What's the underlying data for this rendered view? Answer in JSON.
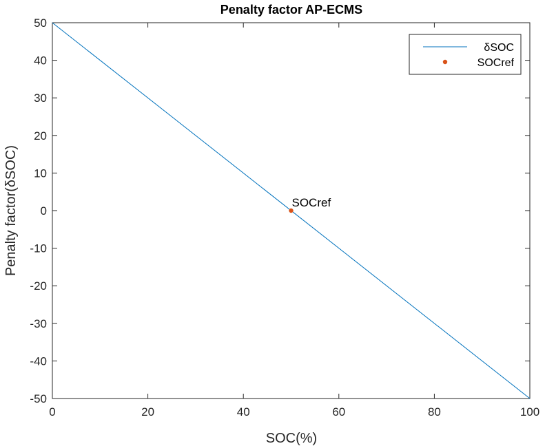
{
  "chart_data": {
    "type": "line",
    "title": "Penalty factor AP-ECMS",
    "xlabel": "SOC(%)",
    "ylabel": "Penalty factor(δSOC)",
    "xlim": [
      0,
      100
    ],
    "ylim": [
      -50,
      50
    ],
    "xticks": [
      0,
      20,
      40,
      60,
      80,
      100
    ],
    "yticks": [
      -50,
      -40,
      -30,
      -20,
      -10,
      0,
      10,
      20,
      30,
      40,
      50
    ],
    "grid": false,
    "legend_location": "top-right",
    "series": [
      {
        "name": "δSOC",
        "kind": "line",
        "color": "#0072BD",
        "x": [
          0,
          100
        ],
        "y": [
          50,
          -50
        ]
      },
      {
        "name": "SOCref",
        "kind": "point",
        "color": "#D95319",
        "x": [
          50
        ],
        "y": [
          0
        ]
      }
    ],
    "annotations": [
      {
        "text": "SOCref",
        "x": 50,
        "y": 0
      }
    ]
  }
}
